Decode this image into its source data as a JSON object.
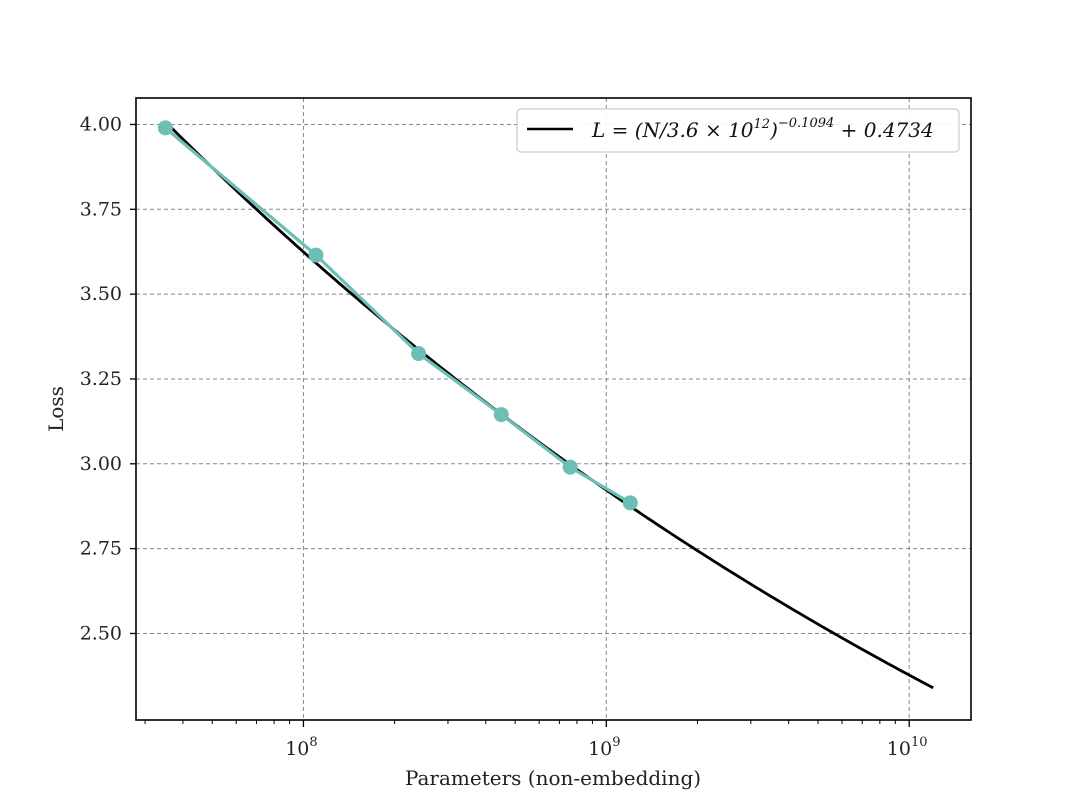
{
  "chart_data": {
    "type": "line",
    "xlabel": "Parameters (non-embedding)",
    "ylabel": "Loss",
    "x_scale": "log",
    "xlim": [
      28000000,
      16000000000
    ],
    "ylim": [
      2.245,
      4.078
    ],
    "grid": true,
    "legend_position": "top-right",
    "y_ticks": [
      "4.00",
      "3.75",
      "3.50",
      "3.25",
      "3.00",
      "2.75",
      "2.50"
    ],
    "y_tick_values": [
      4.0,
      3.75,
      3.5,
      3.25,
      3.0,
      2.75,
      2.5
    ],
    "x_ticks": [
      {
        "value": 100000000,
        "base": "10",
        "exp": "8"
      },
      {
        "value": 1000000000,
        "base": "10",
        "exp": "9"
      },
      {
        "value": 10000000000,
        "base": "10",
        "exp": "10"
      }
    ],
    "legend": {
      "prefix": "L = (N/3.6 × 10",
      "exp1": "12",
      "mid": ")",
      "exp2": "−0.1094",
      "suffix": " + 0.4734"
    },
    "series": [
      {
        "name": "L = (N/3.6 × 10^12)^−0.1094 + 0.4734",
        "kind": "fit",
        "color": "#000000",
        "x_range": [
          35000000,
          12000000000
        ],
        "formula": {
          "Nc": 3600000000000.0,
          "alpha": 0.1094,
          "offset": 0.4734
        }
      },
      {
        "kind": "data",
        "color": "#6bbfb5",
        "x": [
          35000000,
          110000000,
          240000000,
          450000000,
          760000000,
          1200000000
        ],
        "y": [
          3.99,
          3.615,
          3.325,
          3.145,
          2.99,
          2.885
        ]
      }
    ]
  }
}
